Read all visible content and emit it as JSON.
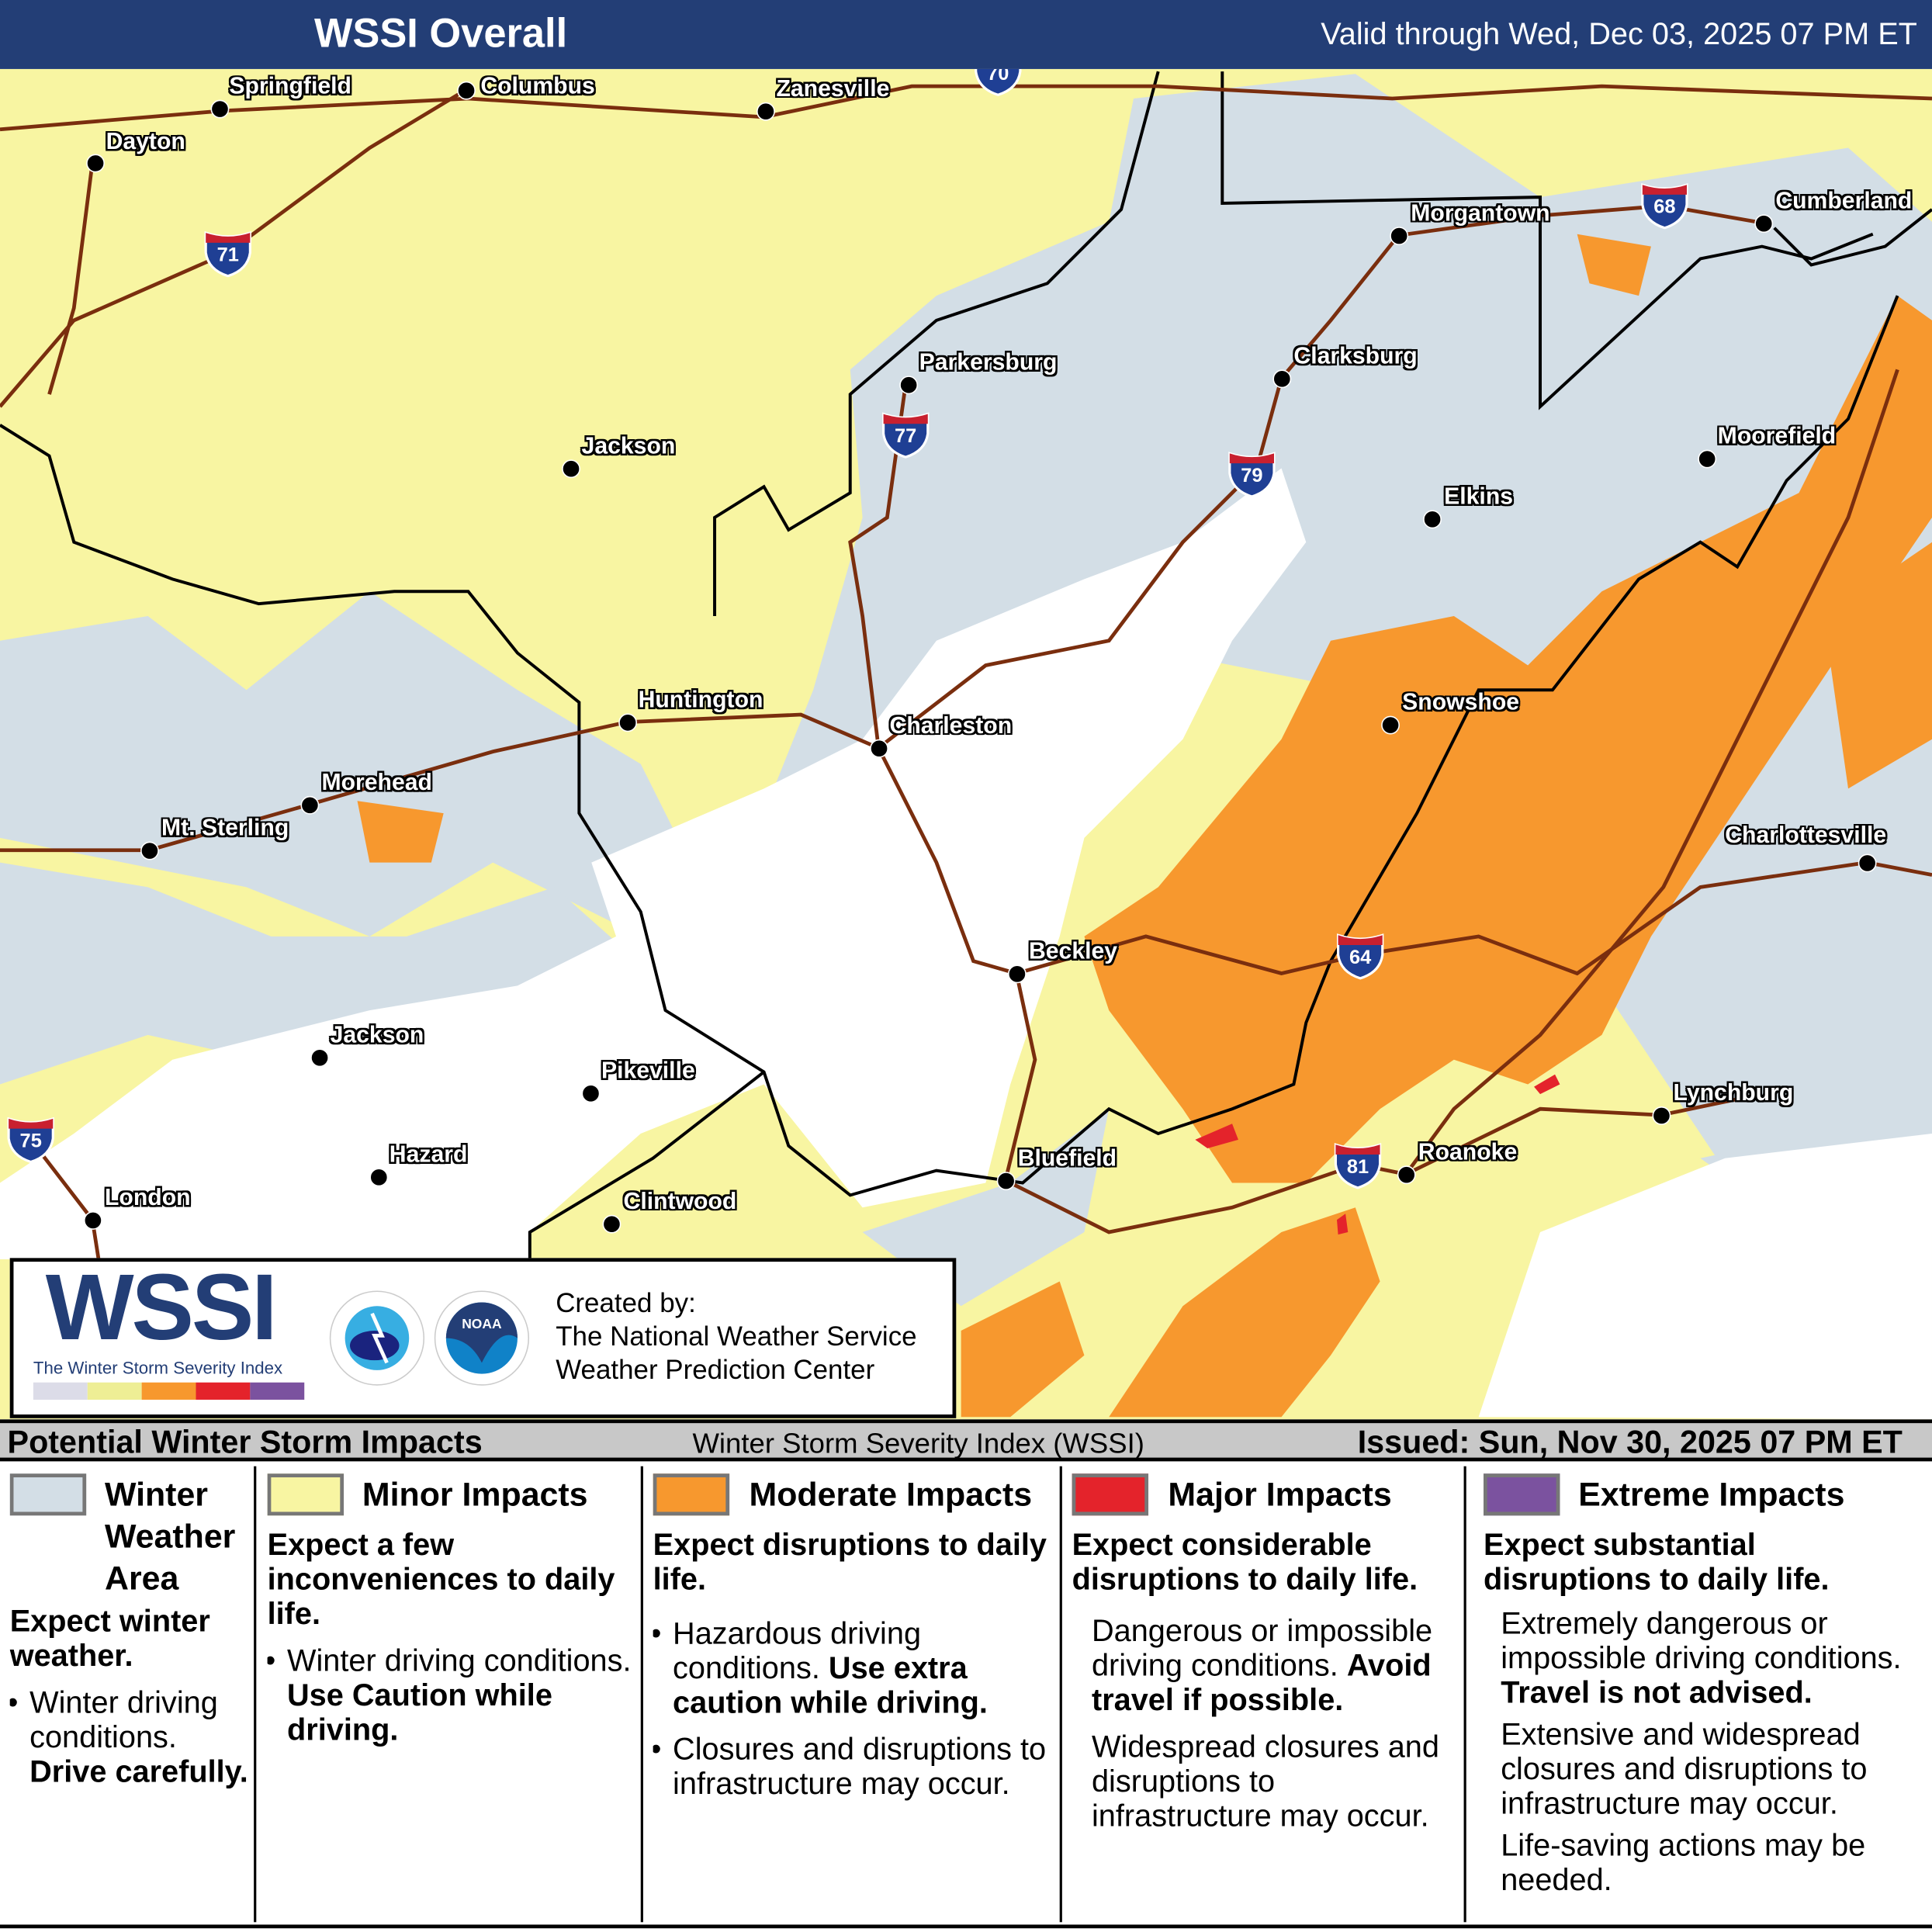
{
  "header": {
    "title": "WSSI Overall",
    "valid": "Valid through Wed, Dec 03, 2025 07 PM ET"
  },
  "colors": {
    "header_bg": "#233e76",
    "winter_weather_area": "#d3dee6",
    "minor": "#f8f5a2",
    "moderate": "#f7982e",
    "major": "#e4232b",
    "extreme": "#7b529f",
    "roads": "#7a2e0e",
    "borders": "#000000"
  },
  "map": {
    "cities": [
      "Springfield",
      "Columbus",
      "Zanesville",
      "Dayton",
      "Morgantown",
      "Cumberland",
      "Parkersburg",
      "Clarksburg",
      "Jackson",
      "Moorefield",
      "Elkins",
      "Huntington",
      "Charleston",
      "Snowshoe",
      "Morehead",
      "Mt. Sterling",
      "Charlottesville",
      "Beckley",
      "Jackson",
      "Pikeville",
      "Lynchburg",
      "Hazard",
      "Bluefield",
      "Roanoke",
      "London",
      "Clintwood"
    ],
    "interstates": [
      "70",
      "71",
      "68",
      "77",
      "79",
      "64",
      "75",
      "81"
    ]
  },
  "logo": {
    "wordmark": "WSSI",
    "tagline": "The Winter Storm Severity Index",
    "nws_seal": "National Weather Service",
    "noaa_seal": "NOAA",
    "created_by": "Created by:",
    "org1": "The National Weather Service",
    "org2": "Weather Prediction Center"
  },
  "legend": {
    "title": "Potential Winter Storm Impacts",
    "subtitle": "Winter Storm Severity Index (WSSI)",
    "issued": "Issued: Sun, Nov 30, 2025 07 PM ET",
    "categories": [
      {
        "name_l1": "Winter",
        "name_l2": "Weather",
        "name_l3": "Area",
        "summary": "Expect winter weather.",
        "bullet1": "Winter driving conditions.",
        "bullet1_bold": "Drive carefully."
      },
      {
        "name": "Minor Impacts",
        "summary": "Expect a few inconveniences to daily life.",
        "bullet1": "Winter driving conditions.",
        "bullet1_bold": "Use Caution while driving."
      },
      {
        "name": "Moderate Impacts",
        "summary": "Expect disruptions to daily life.",
        "bullet1": "Hazardous driving conditions.",
        "bullet1_bold": "Use extra caution while driving.",
        "bullet2": "Closures and disruptions to infrastructure may occur."
      },
      {
        "name": "Major Impacts",
        "summary": "Expect considerable disruptions to daily life.",
        "text1": "Dangerous or impossible driving conditions.",
        "text1_bold": "Avoid travel if possible.",
        "text2": "Widespread closures and disruptions to infrastructure may occur."
      },
      {
        "name": "Extreme Impacts",
        "summary": "Expect substantial disruptions to daily life.",
        "text1": "Extremely dangerous or impossible driving conditions.",
        "text1_bold": "Travel is not advised.",
        "text2": "Extensive and widespread closures and disruptions to infrastructure may occur.",
        "text3": "Life-saving actions may be needed."
      }
    ]
  }
}
